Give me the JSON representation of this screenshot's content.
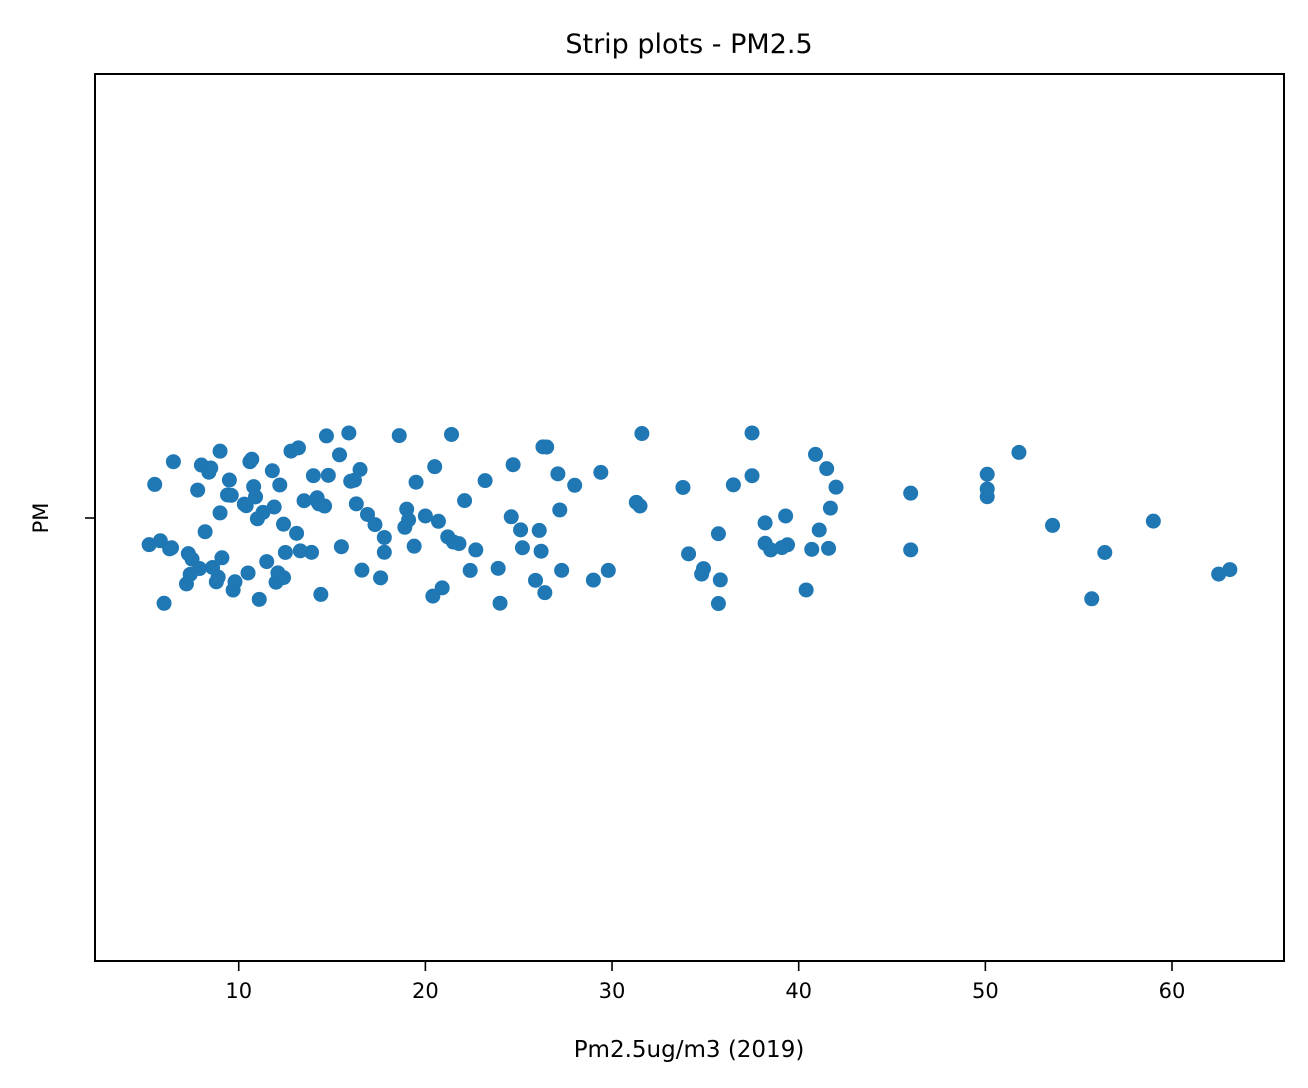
{
  "chart_data": {
    "type": "scatter",
    "title": "Strip plots - PM2.5",
    "xlabel": "Pm2.5ug/m3 (2019)",
    "ylabel": "",
    "category": "PM",
    "xlim": [
      2.3,
      66.0
    ],
    "xticks": [
      10,
      20,
      30,
      40,
      50,
      60
    ],
    "grid": false,
    "legend": "none",
    "color": "#1f77b4",
    "series": [
      {
        "values": [
          5.2,
          5.5,
          5.8,
          6.0,
          6.3,
          6.4,
          6.5,
          7.2,
          7.3,
          7.4,
          7.5,
          7.8,
          7.9,
          8.0,
          8.2,
          8.4,
          8.5,
          8.6,
          8.8,
          8.9,
          9.0,
          9.0,
          9.1,
          9.4,
          9.5,
          9.6,
          9.7,
          9.8,
          10.3,
          10.4,
          10.5,
          10.6,
          10.7,
          10.8,
          10.9,
          11.0,
          11.1,
          11.3,
          11.5,
          11.8,
          11.9,
          12.0,
          12.1,
          12.2,
          12.4,
          12.4,
          12.5,
          12.8,
          13.1,
          13.2,
          13.3,
          13.5,
          13.9,
          14.0,
          14.2,
          14.2,
          14.3,
          14.4,
          14.6,
          14.7,
          14.8,
          15.4,
          15.5,
          15.9,
          16.0,
          16.2,
          16.3,
          16.5,
          16.6,
          16.9,
          17.3,
          17.6,
          17.8,
          17.8,
          18.6,
          18.9,
          19.0,
          19.1,
          19.4,
          19.5,
          20.0,
          20.4,
          20.5,
          20.7,
          20.9,
          21.2,
          21.4,
          21.5,
          21.8,
          22.1,
          22.4,
          22.7,
          23.2,
          23.9,
          24.0,
          24.6,
          24.7,
          25.1,
          25.2,
          25.9,
          26.1,
          26.2,
          26.3,
          26.4,
          26.5,
          27.1,
          27.2,
          27.3,
          28.0,
          29.0,
          29.4,
          29.8,
          31.3,
          31.5,
          31.6,
          33.8,
          34.1,
          34.8,
          34.9,
          35.7,
          35.7,
          35.8,
          36.5,
          37.5,
          37.5,
          38.2,
          38.2,
          38.5,
          39.1,
          39.3,
          39.4,
          40.4,
          40.7,
          40.9,
          41.1,
          41.5,
          41.6,
          41.7,
          42.0,
          46.0,
          46.0,
          50.1,
          50.1,
          50.1,
          51.8,
          53.6,
          55.7,
          56.4,
          59.0,
          62.5,
          63.1
        ]
      }
    ]
  }
}
